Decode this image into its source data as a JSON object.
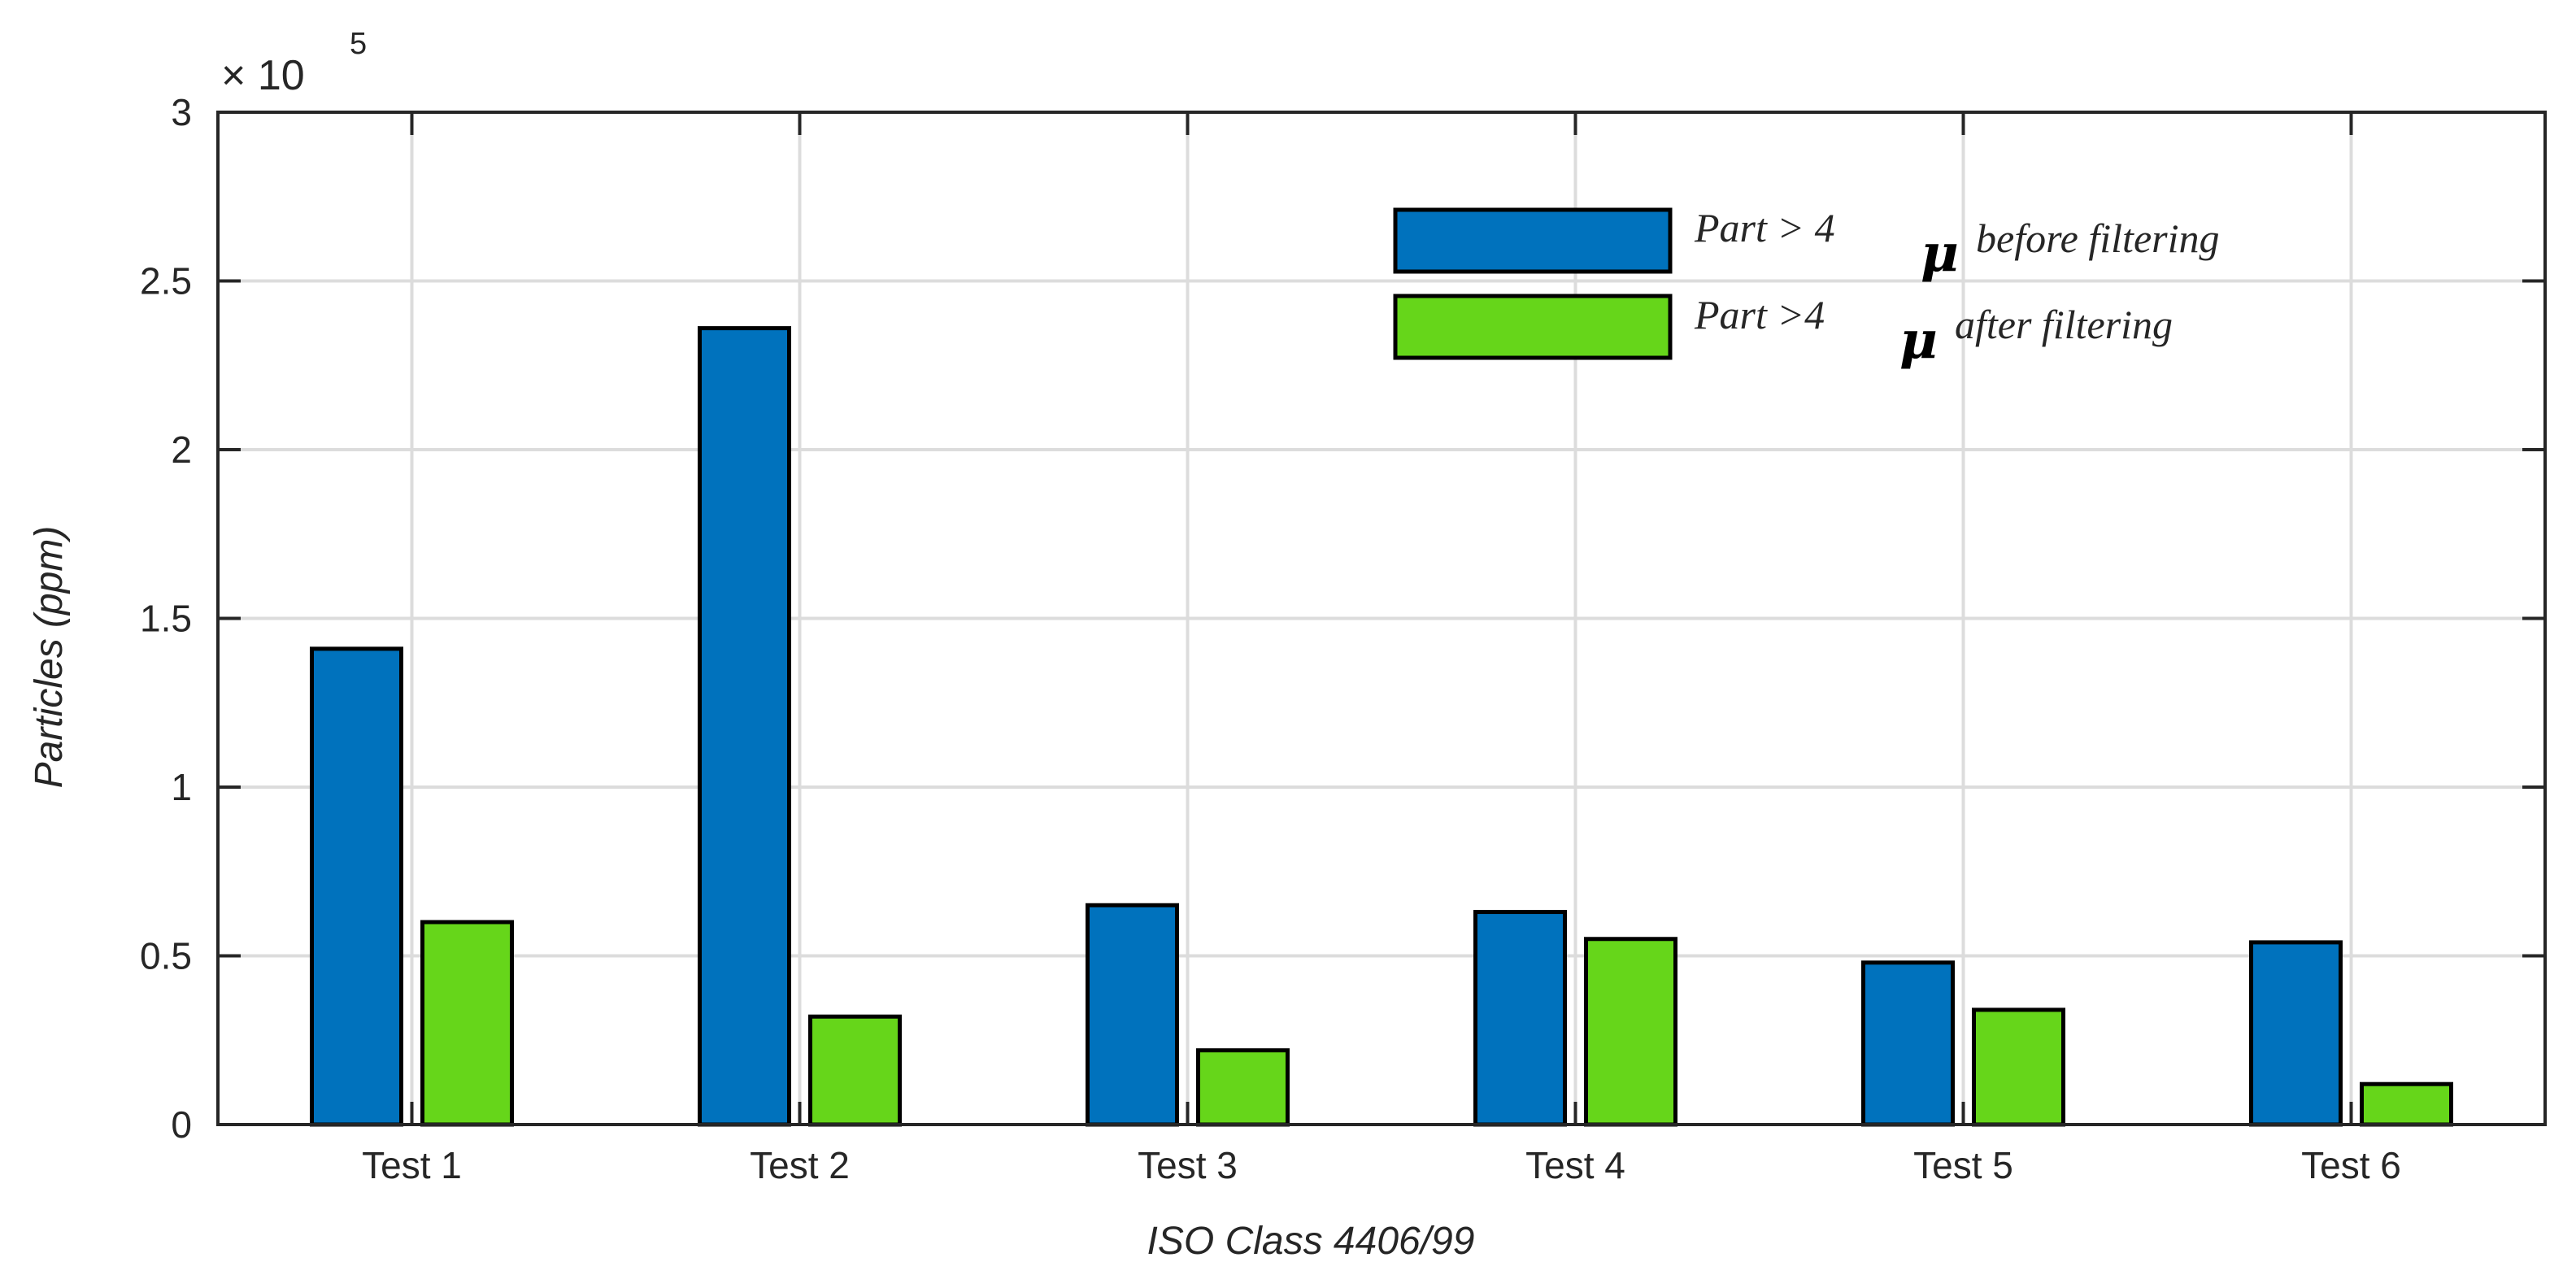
{
  "chart_data": {
    "type": "bar",
    "title": "",
    "xlabel": "ISO Class 4406/99",
    "ylabel": "Particles (ppm)",
    "categories": [
      "Test 1",
      "Test 2",
      "Test 3",
      "Test 4",
      "Test 5",
      "Test 6"
    ],
    "ylim": [
      0,
      300000
    ],
    "yticks": [
      0,
      50000,
      100000,
      150000,
      200000,
      250000,
      300000
    ],
    "ytick_labels": [
      "0",
      "0.5",
      "1",
      "1.5",
      "2",
      "2.5",
      "3"
    ],
    "exponent_label": {
      "base": "× 10",
      "power": "5"
    },
    "grid": true,
    "legend_position": "top-right",
    "series": [
      {
        "label_text": "Part > 4",
        "mu_symbol": "μ",
        "label_suffix": "before filtering",
        "color": "#0072BD",
        "values": [
          141000,
          236000,
          65000,
          63000,
          48000,
          54000
        ]
      },
      {
        "label_text": "Part >4",
        "mu_symbol": "μ",
        "label_suffix": "after filtering",
        "color": "#66D61A",
        "values": [
          60000,
          32000,
          22000,
          55000,
          34000,
          12000
        ]
      }
    ]
  }
}
